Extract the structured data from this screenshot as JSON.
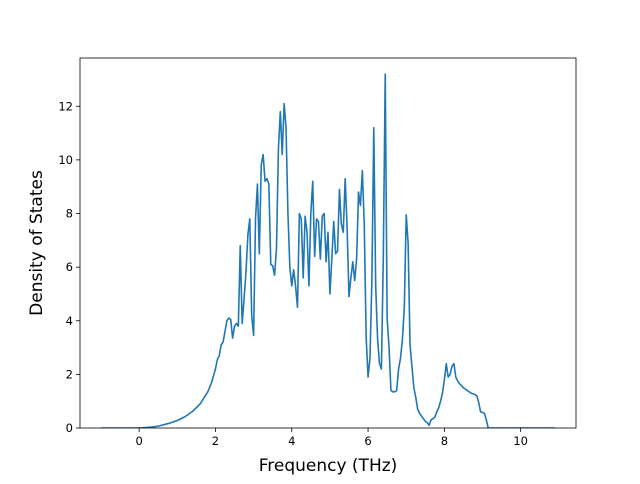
{
  "chart_data": {
    "type": "line",
    "title": "",
    "xlabel": "Frequency (THz)",
    "ylabel": "Density of States",
    "xlim": [
      -1.55,
      11.45
    ],
    "ylim": [
      0,
      13.8
    ],
    "xticks": [
      0,
      2,
      4,
      6,
      8,
      10
    ],
    "yticks": [
      0,
      2,
      4,
      6,
      8,
      10,
      12
    ],
    "grid": false,
    "legend": "none",
    "colors": {
      "line": "#1f77b4",
      "axes": "#000000",
      "background": "#ffffff"
    },
    "series": [
      {
        "points": [
          [
            -1.0,
            0.0
          ],
          [
            -0.5,
            0.0
          ],
          [
            0.0,
            0.0
          ],
          [
            0.3,
            0.03
          ],
          [
            0.5,
            0.07
          ],
          [
            0.8,
            0.18
          ],
          [
            1.0,
            0.28
          ],
          [
            1.2,
            0.42
          ],
          [
            1.4,
            0.62
          ],
          [
            1.6,
            0.9
          ],
          [
            1.8,
            1.35
          ],
          [
            1.9,
            1.7
          ],
          [
            2.0,
            2.2
          ],
          [
            2.05,
            2.55
          ],
          [
            2.1,
            2.7
          ],
          [
            2.15,
            3.1
          ],
          [
            2.2,
            3.2
          ],
          [
            2.25,
            3.6
          ],
          [
            2.3,
            4.0
          ],
          [
            2.35,
            4.1
          ],
          [
            2.4,
            4.05
          ],
          [
            2.45,
            3.35
          ],
          [
            2.5,
            3.8
          ],
          [
            2.55,
            3.9
          ],
          [
            2.6,
            3.8
          ],
          [
            2.65,
            6.8
          ],
          [
            2.7,
            3.9
          ],
          [
            2.75,
            4.8
          ],
          [
            2.8,
            5.8
          ],
          [
            2.85,
            7.2
          ],
          [
            2.9,
            7.8
          ],
          [
            2.95,
            4.2
          ],
          [
            3.0,
            3.45
          ],
          [
            3.05,
            7.8
          ],
          [
            3.1,
            9.1
          ],
          [
            3.15,
            6.5
          ],
          [
            3.2,
            9.8
          ],
          [
            3.25,
            10.2
          ],
          [
            3.3,
            9.2
          ],
          [
            3.35,
            9.3
          ],
          [
            3.4,
            9.1
          ],
          [
            3.45,
            6.1
          ],
          [
            3.5,
            6.05
          ],
          [
            3.55,
            5.7
          ],
          [
            3.6,
            6.7
          ],
          [
            3.65,
            10.4
          ],
          [
            3.7,
            11.8
          ],
          [
            3.75,
            10.2
          ],
          [
            3.8,
            12.1
          ],
          [
            3.85,
            11.2
          ],
          [
            3.9,
            8.0
          ],
          [
            3.95,
            6.0
          ],
          [
            4.0,
            5.3
          ],
          [
            4.05,
            5.9
          ],
          [
            4.1,
            5.3
          ],
          [
            4.15,
            4.5
          ],
          [
            4.2,
            8.0
          ],
          [
            4.25,
            7.8
          ],
          [
            4.3,
            5.6
          ],
          [
            4.35,
            7.9
          ],
          [
            4.4,
            7.3
          ],
          [
            4.45,
            5.3
          ],
          [
            4.5,
            8.0
          ],
          [
            4.55,
            9.2
          ],
          [
            4.6,
            6.4
          ],
          [
            4.65,
            7.8
          ],
          [
            4.7,
            7.7
          ],
          [
            4.75,
            6.3
          ],
          [
            4.8,
            7.9
          ],
          [
            4.85,
            8.0
          ],
          [
            4.9,
            6.2
          ],
          [
            4.95,
            7.3
          ],
          [
            5.0,
            5.0
          ],
          [
            5.05,
            6.3
          ],
          [
            5.1,
            7.7
          ],
          [
            5.15,
            6.5
          ],
          [
            5.2,
            6.6
          ],
          [
            5.25,
            8.9
          ],
          [
            5.3,
            7.6
          ],
          [
            5.35,
            7.3
          ],
          [
            5.4,
            9.3
          ],
          [
            5.45,
            7.5
          ],
          [
            5.5,
            4.9
          ],
          [
            5.55,
            5.6
          ],
          [
            5.6,
            6.2
          ],
          [
            5.65,
            5.5
          ],
          [
            5.7,
            6.3
          ],
          [
            5.75,
            8.8
          ],
          [
            5.8,
            8.3
          ],
          [
            5.85,
            9.6
          ],
          [
            5.9,
            7.6
          ],
          [
            5.95,
            3.4
          ],
          [
            6.0,
            1.9
          ],
          [
            6.05,
            2.6
          ],
          [
            6.1,
            5.5
          ],
          [
            6.15,
            11.2
          ],
          [
            6.2,
            5.3
          ],
          [
            6.25,
            3.3
          ],
          [
            6.3,
            2.4
          ],
          [
            6.35,
            2.2
          ],
          [
            6.4,
            6.4
          ],
          [
            6.45,
            13.2
          ],
          [
            6.5,
            4.1
          ],
          [
            6.55,
            3.0
          ],
          [
            6.6,
            1.4
          ],
          [
            6.65,
            1.35
          ],
          [
            6.7,
            1.35
          ],
          [
            6.75,
            1.4
          ],
          [
            6.8,
            2.2
          ],
          [
            6.85,
            2.6
          ],
          [
            6.9,
            3.3
          ],
          [
            6.95,
            4.5
          ],
          [
            7.0,
            7.95
          ],
          [
            7.05,
            6.9
          ],
          [
            7.1,
            3.1
          ],
          [
            7.15,
            2.3
          ],
          [
            7.2,
            1.5
          ],
          [
            7.25,
            1.15
          ],
          [
            7.3,
            0.7
          ],
          [
            7.35,
            0.55
          ],
          [
            7.4,
            0.45
          ],
          [
            7.45,
            0.35
          ],
          [
            7.5,
            0.25
          ],
          [
            7.55,
            0.2
          ],
          [
            7.6,
            0.1
          ],
          [
            7.65,
            0.3
          ],
          [
            7.7,
            0.35
          ],
          [
            7.75,
            0.4
          ],
          [
            7.8,
            0.6
          ],
          [
            7.85,
            0.75
          ],
          [
            7.9,
            1.0
          ],
          [
            7.95,
            1.3
          ],
          [
            8.0,
            1.8
          ],
          [
            8.05,
            2.4
          ],
          [
            8.1,
            1.9
          ],
          [
            8.15,
            2.0
          ],
          [
            8.2,
            2.3
          ],
          [
            8.25,
            2.4
          ],
          [
            8.3,
            1.9
          ],
          [
            8.35,
            1.75
          ],
          [
            8.4,
            1.65
          ],
          [
            8.5,
            1.5
          ],
          [
            8.6,
            1.4
          ],
          [
            8.7,
            1.3
          ],
          [
            8.8,
            1.25
          ],
          [
            8.85,
            1.2
          ],
          [
            8.9,
            0.95
          ],
          [
            8.95,
            0.6
          ],
          [
            9.0,
            0.58
          ],
          [
            9.05,
            0.55
          ],
          [
            9.1,
            0.3
          ],
          [
            9.15,
            0.0
          ],
          [
            9.5,
            0.0
          ],
          [
            10.0,
            0.0
          ],
          [
            10.5,
            0.0
          ],
          [
            10.9,
            0.0
          ]
        ]
      }
    ]
  }
}
